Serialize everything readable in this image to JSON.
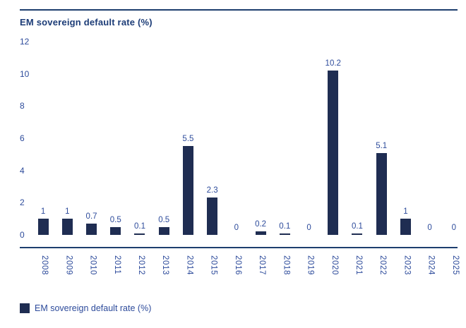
{
  "chart_data": {
    "type": "bar",
    "title": "EM sovereign default rate (%)",
    "categories": [
      "2008",
      "2009",
      "2010",
      "2011",
      "2012",
      "2013",
      "2014",
      "2015",
      "2016",
      "2017",
      "2018",
      "2019",
      "2020",
      "2021",
      "2022",
      "2023",
      "2024",
      "2025"
    ],
    "values": [
      1,
      1,
      0.7,
      0.5,
      0.1,
      0.5,
      5.5,
      2.3,
      0,
      0.2,
      0.1,
      0,
      10.2,
      0.1,
      5.1,
      1,
      0,
      0
    ],
    "value_labels": [
      "1",
      "1",
      "0.7",
      "0.5",
      "0.1",
      "0.5",
      "5.5",
      "2.3",
      "0",
      "0.2",
      "0.1",
      "0",
      "10.2",
      "0.1",
      "5.1",
      "1",
      "0",
      "0"
    ],
    "xlabel": "",
    "ylabel": "",
    "y_ticks": [
      0,
      2,
      4,
      6,
      8,
      10,
      12
    ],
    "ylim": [
      0,
      12
    ],
    "grid": false,
    "legend": {
      "position": "bottom",
      "entries": [
        "EM sovereign default rate (%)"
      ]
    },
    "colors": {
      "bar": "#1f2d52",
      "text": "#2d4b9b",
      "title": "#1c3c77",
      "axis_line": "#1d3e6e",
      "background": "#ffffff"
    }
  }
}
